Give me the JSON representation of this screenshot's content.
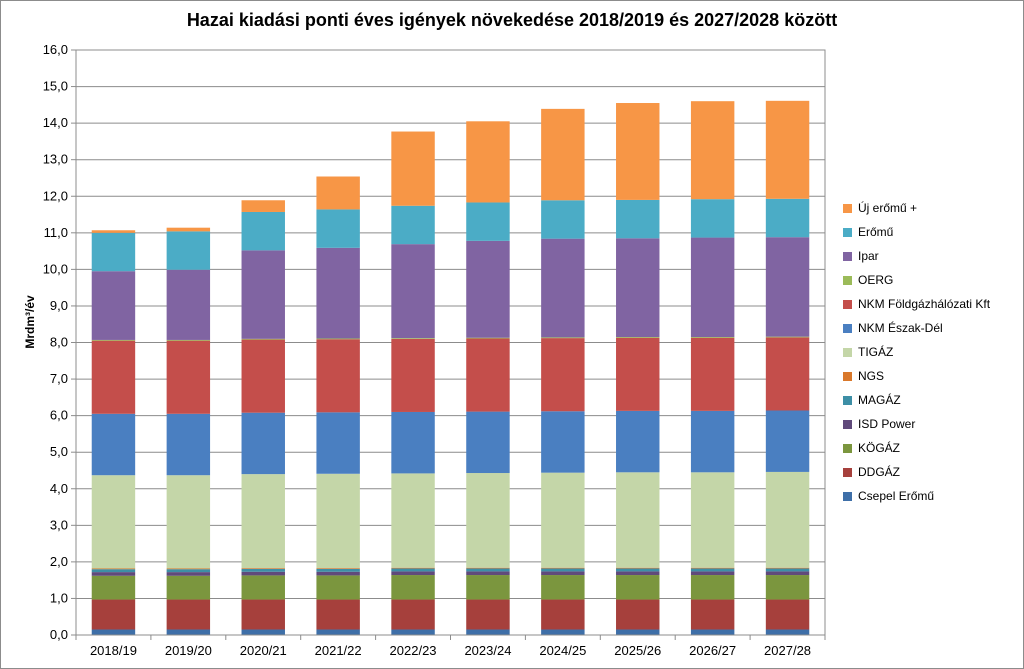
{
  "chart_data": {
    "type": "bar",
    "stacked": true,
    "title": "Hazai kiadási ponti éves igények növekedése 2018/2019 és 2027/2028 között",
    "xlabel": "",
    "ylabel": "Mrdm³/év",
    "ylim": [
      0,
      16
    ],
    "ytick_step": 1,
    "grid": "horizontal",
    "legend_position": "right",
    "categories": [
      "2018/19",
      "2019/20",
      "2020/21",
      "2021/22",
      "2022/23",
      "2023/24",
      "2024/25",
      "2025/26",
      "2026/27",
      "2027/28"
    ],
    "series": [
      {
        "name": "Csepel Erőmű",
        "color": "#3e6fa8",
        "values": [
          0.15,
          0.15,
          0.15,
          0.15,
          0.15,
          0.15,
          0.15,
          0.15,
          0.15,
          0.15
        ]
      },
      {
        "name": "DDGÁZ",
        "color": "#a6403c",
        "values": [
          0.82,
          0.82,
          0.82,
          0.82,
          0.82,
          0.82,
          0.82,
          0.82,
          0.82,
          0.82
        ]
      },
      {
        "name": "KÖGÁZ",
        "color": "#7b963e",
        "values": [
          0.65,
          0.65,
          0.66,
          0.66,
          0.67,
          0.67,
          0.67,
          0.67,
          0.67,
          0.67
        ]
      },
      {
        "name": "ISD Power",
        "color": "#604a7b",
        "values": [
          0.1,
          0.1,
          0.1,
          0.1,
          0.1,
          0.1,
          0.1,
          0.1,
          0.1,
          0.1
        ]
      },
      {
        "name": "MAGÁZ",
        "color": "#3d8fa6",
        "values": [
          0.08,
          0.08,
          0.08,
          0.08,
          0.08,
          0.08,
          0.08,
          0.08,
          0.08,
          0.08
        ]
      },
      {
        "name": "NGS",
        "color": "#d9782b",
        "values": [
          0.02,
          0.02,
          0.02,
          0.02,
          0.02,
          0.02,
          0.02,
          0.02,
          0.02,
          0.02
        ]
      },
      {
        "name": "TIGÁZ",
        "color": "#c4d6a8",
        "values": [
          2.55,
          2.55,
          2.57,
          2.58,
          2.58,
          2.59,
          2.6,
          2.61,
          2.61,
          2.62
        ]
      },
      {
        "name": "NKM Észak-Dél",
        "color": "#4a7fc1",
        "values": [
          1.68,
          1.68,
          1.68,
          1.68,
          1.68,
          1.68,
          1.68,
          1.68,
          1.68,
          1.68
        ]
      },
      {
        "name": "NKM Földgázhálózati Kft",
        "color": "#c44e4b",
        "values": [
          2.0,
          2.0,
          2.0,
          2.0,
          2.0,
          2.0,
          2.0,
          2.0,
          2.0,
          2.0
        ]
      },
      {
        "name": "OERG",
        "color": "#9bbb59",
        "values": [
          0.02,
          0.02,
          0.02,
          0.02,
          0.02,
          0.02,
          0.02,
          0.02,
          0.02,
          0.02
        ]
      },
      {
        "name": "Ipar",
        "color": "#8064a2",
        "values": [
          1.88,
          1.92,
          2.42,
          2.48,
          2.57,
          2.65,
          2.7,
          2.7,
          2.72,
          2.72
        ]
      },
      {
        "name": "Erőmű",
        "color": "#4bacc6",
        "values": [
          1.05,
          1.05,
          1.05,
          1.05,
          1.05,
          1.05,
          1.05,
          1.05,
          1.05,
          1.05
        ]
      },
      {
        "name": "Új erőmű +",
        "color": "#f79646",
        "values": [
          0.07,
          0.1,
          0.32,
          0.9,
          2.03,
          2.22,
          2.5,
          2.65,
          2.68,
          2.68
        ]
      }
    ]
  }
}
